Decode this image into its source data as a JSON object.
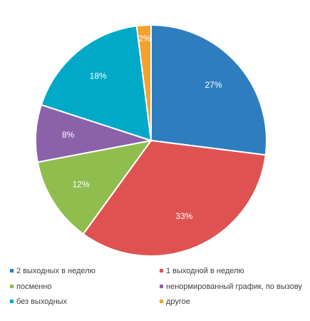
{
  "chart_data": {
    "type": "pie",
    "title": "",
    "legend": "bottom",
    "slices": [
      {
        "label": "2 выходных  в неделю",
        "value": 27,
        "value_label": "27%",
        "color": "#2e7ebf"
      },
      {
        "label": "1 выходной  в неделю",
        "value": 33,
        "value_label": "33%",
        "color": "#e05252"
      },
      {
        "label": "посменно",
        "value": 12,
        "value_label": "12%",
        "color": "#8fbe4f"
      },
      {
        "label": "ненормированный график, по вызову",
        "value": 8,
        "value_label": "8%",
        "color": "#8b62aa"
      },
      {
        "label": "без выходных",
        "value": 18,
        "value_label": "18%",
        "color": "#00a9c7"
      },
      {
        "label": "другое",
        "value": 2,
        "value_label": "2%",
        "color": "#f4a12e"
      }
    ]
  }
}
